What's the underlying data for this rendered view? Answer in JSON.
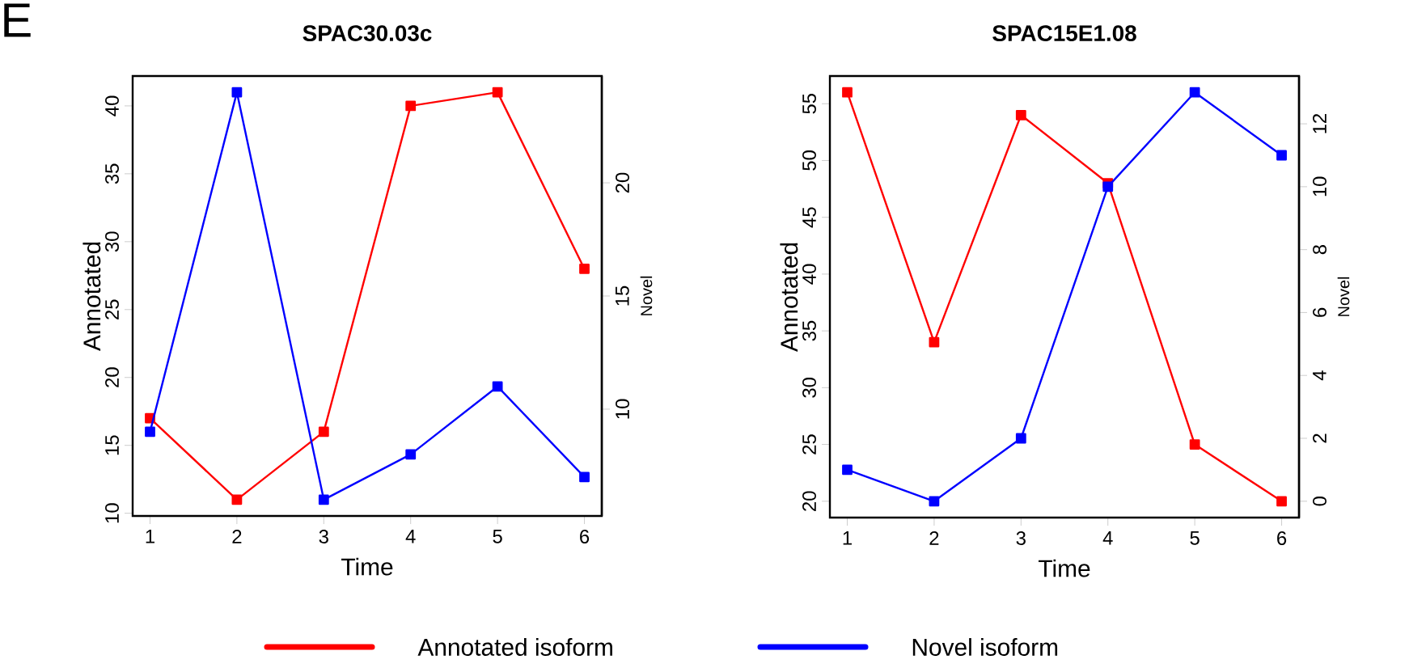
{
  "chart_data": [
    {
      "type": "line",
      "title": "SPAC30.03c",
      "xlabel": "Time",
      "ylabel": "Annotated",
      "y2label": "Novel",
      "annotations": [
        "E"
      ],
      "x": [
        1,
        2,
        3,
        4,
        5,
        6
      ],
      "xlim": [
        0.8,
        6.2
      ],
      "xticks": [
        1,
        2,
        3,
        4,
        5,
        6
      ],
      "ylim": [
        9.8,
        42.2
      ],
      "yticks": [
        10,
        15,
        20,
        25,
        30,
        35,
        40
      ],
      "y2lim": [
        5.28,
        24.72
      ],
      "y2ticks": [
        10,
        15,
        20
      ],
      "marker": "square",
      "line_style": "solid",
      "legend": "bottom",
      "series": [
        {
          "name": "Annotated isoform",
          "color": "#ff0000",
          "values": [
            17,
            11,
            16,
            40,
            41,
            28
          ]
        },
        {
          "name": "Novel isoform",
          "color": "#0000ff",
          "axis": "y2",
          "values": [
            9,
            24,
            6,
            8,
            11,
            7
          ]
        }
      ]
    },
    {
      "type": "line",
      "title": "SPAC15E1.08",
      "xlabel": "Time",
      "ylabel": "Annotated",
      "y2label": "Novel",
      "x": [
        1,
        2,
        3,
        4,
        5,
        6
      ],
      "xlim": [
        0.8,
        6.2
      ],
      "xticks": [
        1,
        2,
        3,
        4,
        5,
        6
      ],
      "ylim": [
        18.56,
        57.44
      ],
      "yticks": [
        20,
        25,
        30,
        35,
        40,
        45,
        50,
        55
      ],
      "y2lim": [
        -0.52,
        13.52
      ],
      "y2ticks": [
        0,
        2,
        4,
        6,
        8,
        10,
        12
      ],
      "marker": "square",
      "line_style": "solid",
      "series": [
        {
          "color": "#ff0000",
          "values": [
            56,
            34,
            54,
            48,
            25,
            20
          ]
        },
        {
          "color": "#0000ff",
          "axis": "y2",
          "values": [
            1,
            0,
            2,
            10,
            13,
            11
          ]
        }
      ]
    }
  ]
}
